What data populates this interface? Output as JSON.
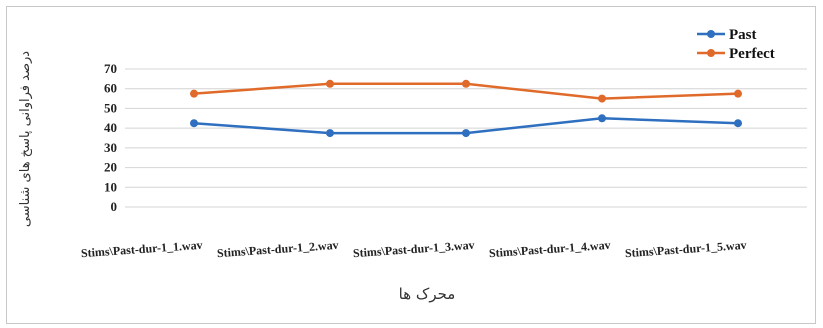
{
  "chart_data": {
    "type": "line",
    "title": "",
    "xlabel": "محرک ها",
    "ylabel": "درصد فراوانی پاسخ های شناسی",
    "categories": [
      "Stims\\Past-dur-1_1.wav",
      "Stims\\Past-dur-1_2.wav",
      "Stims\\Past-dur-1_3.wav",
      "Stims\\Past-dur-1_4.wav",
      "Stims\\Past-dur-1_5.wav"
    ],
    "series": [
      {
        "name": "Past",
        "color": "#2e6fc0",
        "values": [
          42.5,
          37.5,
          37.5,
          45,
          42.5
        ]
      },
      {
        "name": "Perfect",
        "color": "#e06a2a",
        "values": [
          57.5,
          62.5,
          62.5,
          55,
          57.5
        ]
      }
    ],
    "ylim": [
      0,
      70
    ],
    "yticks": [
      0,
      10,
      20,
      30,
      40,
      50,
      60,
      70
    ],
    "grid": true,
    "legend_position": "top-right"
  }
}
